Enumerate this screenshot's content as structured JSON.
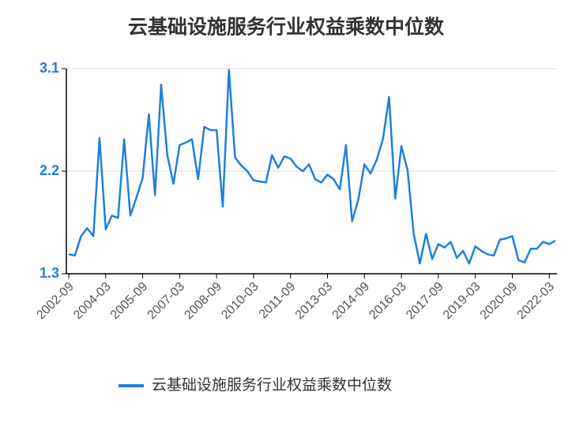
{
  "chart_data": {
    "type": "line",
    "title": "云基础设施服务行业权益乘数中位数",
    "categories": [
      "2002-09",
      null,
      null,
      null,
      null,
      null,
      "2004-03",
      null,
      null,
      null,
      null,
      null,
      "2005-09",
      null,
      null,
      null,
      null,
      null,
      "2007-03",
      null,
      null,
      null,
      null,
      null,
      "2008-09",
      null,
      null,
      null,
      null,
      null,
      "2010-03",
      null,
      null,
      null,
      null,
      null,
      "2011-09",
      null,
      null,
      null,
      null,
      null,
      "2013-03",
      null,
      null,
      null,
      null,
      null,
      "2014-09",
      null,
      null,
      null,
      null,
      null,
      "2016-03",
      null,
      null,
      null,
      null,
      null,
      "2017-09",
      null,
      null,
      null,
      null,
      null,
      "2019-03",
      null,
      null,
      null,
      null,
      null,
      "2020-09",
      null,
      null,
      null,
      null,
      null,
      "2022-03",
      null
    ],
    "series": [
      {
        "name": "云基础设施服务行业权益乘数中位数",
        "color": "#1f7fe0",
        "values": [
          1.47,
          1.46,
          1.63,
          1.7,
          1.63,
          2.49,
          1.69,
          1.81,
          1.79,
          2.48,
          1.81,
          1.97,
          2.14,
          2.7,
          1.99,
          2.96,
          2.34,
          2.09,
          2.43,
          2.45,
          2.48,
          2.13,
          2.59,
          2.56,
          2.56,
          1.89,
          3.09,
          2.32,
          2.25,
          2.2,
          2.12,
          2.11,
          2.1,
          2.34,
          2.23,
          2.33,
          2.31,
          2.24,
          2.2,
          2.26,
          2.13,
          2.1,
          2.17,
          2.13,
          2.04,
          2.43,
          1.76,
          1.95,
          2.26,
          2.18,
          2.3,
          2.48,
          2.85,
          1.96,
          2.42,
          2.21,
          1.65,
          1.39,
          1.65,
          1.43,
          1.56,
          1.53,
          1.58,
          1.44,
          1.5,
          1.39,
          1.54,
          1.5,
          1.47,
          1.46,
          1.6,
          1.61,
          1.63,
          1.42,
          1.4,
          1.52,
          1.52,
          1.58,
          1.56,
          1.59
        ]
      }
    ],
    "ylim": [
      1.3,
      3.1
    ],
    "yticks": [
      1.3,
      2.2,
      3.1
    ],
    "grid": true,
    "legend": "bottom"
  }
}
